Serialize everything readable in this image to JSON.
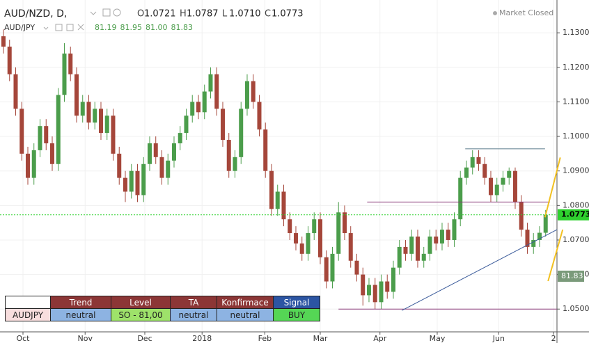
{
  "chart_data": {
    "type": "candlestick",
    "header": {
      "symbol": "AUD/NZD, D,",
      "prefixes": [
        "O",
        "H",
        "L",
        "C"
      ],
      "values": [
        "1.0721",
        "1.0787",
        "1.0710",
        "1.0773"
      ]
    },
    "compare": {
      "symbol": "AUD/JPY",
      "values": [
        "81.19",
        "81.95",
        "81.00",
        "81.83"
      ]
    },
    "market_status": "Market Closed",
    "up_color": "#4b9d4b",
    "down_color": "#a5463a",
    "open": [
      1.129,
      1.126,
      1.118,
      1.108,
      1.095,
      1.088,
      1.096,
      1.103,
      1.098,
      1.092,
      1.112,
      1.124,
      1.118,
      1.106,
      1.11,
      1.104,
      1.108,
      1.101,
      1.106,
      1.095,
      1.088,
      1.084,
      1.09,
      1.083,
      1.092,
      1.098,
      1.094,
      1.088,
      1.093,
      1.098,
      1.101,
      1.106,
      1.11,
      1.107,
      1.113,
      1.118,
      1.108,
      1.099,
      1.09,
      1.094,
      1.108,
      1.116,
      1.11,
      1.102,
      1.09,
      1.079,
      1.084,
      1.076,
      1.072,
      1.069,
      1.066,
      1.072,
      1.076,
      1.065,
      1.058,
      1.066,
      1.078,
      1.072,
      1.064,
      1.06,
      1.054,
      1.057,
      1.052,
      1.058,
      1.055,
      1.062,
      1.068,
      1.066,
      1.071,
      1.064,
      1.066,
      1.071,
      1.069,
      1.073,
      1.07,
      1.076,
      1.088,
      1.091,
      1.094,
      1.092,
      1.088,
      1.083,
      1.086,
      1.088,
      1.09,
      1.081,
      1.073,
      1.068,
      1.07,
      1.0721
    ],
    "high": [
      1.131,
      1.128,
      1.12,
      1.11,
      1.097,
      1.098,
      1.105,
      1.105,
      1.1,
      1.114,
      1.127,
      1.126,
      1.12,
      1.112,
      1.112,
      1.11,
      1.11,
      1.108,
      1.108,
      1.097,
      1.09,
      1.092,
      1.092,
      1.094,
      1.1,
      1.1,
      1.096,
      1.095,
      1.1,
      1.103,
      1.108,
      1.112,
      1.112,
      1.115,
      1.12,
      1.12,
      1.11,
      1.101,
      1.096,
      1.11,
      1.118,
      1.118,
      1.112,
      1.104,
      1.092,
      1.086,
      1.086,
      1.078,
      1.074,
      1.071,
      1.074,
      1.078,
      1.078,
      1.067,
      1.068,
      1.081,
      1.08,
      1.074,
      1.066,
      1.062,
      1.059,
      1.059,
      1.06,
      1.06,
      1.064,
      1.07,
      1.07,
      1.073,
      1.073,
      1.068,
      1.073,
      1.073,
      1.075,
      1.075,
      1.078,
      1.09,
      1.093,
      1.096,
      1.096,
      1.094,
      1.09,
      1.088,
      1.09,
      1.091,
      1.091,
      1.083,
      1.075,
      1.072,
      1.074,
      1.0787
    ],
    "low": [
      1.124,
      1.116,
      1.106,
      1.093,
      1.086,
      1.086,
      1.094,
      1.096,
      1.09,
      1.09,
      1.11,
      1.116,
      1.104,
      1.104,
      1.102,
      1.102,
      1.099,
      1.099,
      1.093,
      1.086,
      1.081,
      1.082,
      1.081,
      1.081,
      1.09,
      1.092,
      1.086,
      1.086,
      1.091,
      1.096,
      1.099,
      1.104,
      1.105,
      1.105,
      1.111,
      1.106,
      1.097,
      1.088,
      1.088,
      1.092,
      1.106,
      1.108,
      1.1,
      1.088,
      1.077,
      1.077,
      1.074,
      1.07,
      1.067,
      1.064,
      1.064,
      1.07,
      1.063,
      1.056,
      1.056,
      1.064,
      1.07,
      1.062,
      1.058,
      1.051,
      1.052,
      1.05,
      1.05,
      1.053,
      1.053,
      1.06,
      1.064,
      1.064,
      1.062,
      1.062,
      1.064,
      1.067,
      1.067,
      1.068,
      1.068,
      1.074,
      1.086,
      1.089,
      1.09,
      1.086,
      1.081,
      1.081,
      1.084,
      1.086,
      1.079,
      1.071,
      1.066,
      1.066,
      1.068,
      1.071
    ],
    "close": [
      1.126,
      1.118,
      1.108,
      1.095,
      1.088,
      1.096,
      1.103,
      1.098,
      1.092,
      1.112,
      1.124,
      1.118,
      1.106,
      1.11,
      1.104,
      1.108,
      1.101,
      1.106,
      1.095,
      1.088,
      1.084,
      1.09,
      1.083,
      1.092,
      1.098,
      1.094,
      1.088,
      1.093,
      1.098,
      1.101,
      1.106,
      1.11,
      1.107,
      1.113,
      1.118,
      1.108,
      1.099,
      1.09,
      1.094,
      1.108,
      1.116,
      1.11,
      1.102,
      1.09,
      1.079,
      1.084,
      1.076,
      1.072,
      1.069,
      1.066,
      1.072,
      1.076,
      1.065,
      1.058,
      1.066,
      1.078,
      1.072,
      1.064,
      1.06,
      1.054,
      1.057,
      1.052,
      1.058,
      1.055,
      1.062,
      1.068,
      1.066,
      1.071,
      1.064,
      1.066,
      1.071,
      1.069,
      1.073,
      1.07,
      1.076,
      1.088,
      1.091,
      1.094,
      1.092,
      1.088,
      1.083,
      1.086,
      1.088,
      1.09,
      1.081,
      1.073,
      1.068,
      1.07,
      1.0721,
      1.0773
    ],
    "xlim": [
      -0.57,
      90.86
    ],
    "xticks": [
      {
        "value": 3.2,
        "label": "Oct"
      },
      {
        "value": 13.4,
        "label": "Nov"
      },
      {
        "value": 23.2,
        "label": "Dec"
      },
      {
        "value": 32.6,
        "label": "2018"
      },
      {
        "value": 42.9,
        "label": "Feb"
      },
      {
        "value": 52,
        "label": "Mar"
      },
      {
        "value": 61.8,
        "label": "Apr"
      },
      {
        "value": 71.2,
        "label": "May"
      },
      {
        "value": 81.3,
        "label": "Jun"
      },
      {
        "value": 90.3,
        "label": "2"
      }
    ],
    "ylim": [
      1.0434,
      1.1395
    ],
    "yticks": [
      {
        "value": 1.05,
        "label": "1.0500"
      },
      {
        "value": 1.06,
        "label": "1.0600"
      },
      {
        "value": 1.07,
        "label": "1.0700"
      },
      {
        "value": 1.08,
        "label": "1.0800"
      },
      {
        "value": 1.09,
        "label": "1.0900"
      },
      {
        "value": 1.1,
        "label": "1.1000"
      },
      {
        "value": 1.11,
        "label": "1.1100"
      },
      {
        "value": 1.12,
        "label": "1.1200"
      },
      {
        "value": 1.13,
        "label": "1.1300"
      }
    ],
    "grid": true,
    "last_price_color": "#2ed12e",
    "lines": [
      {
        "x": [
          75.8,
          88.9
        ],
        "y": [
          1.0964,
          1.0964
        ],
        "color": "#5a7a8a"
      },
      {
        "x": [
          59.7,
          89.7
        ],
        "y": [
          1.081,
          1.081
        ],
        "color": "#8a3a7a"
      },
      {
        "x": [
          55,
          90.86
        ],
        "y": [
          1.05,
          1.05
        ],
        "color": "#8a3a7a"
      },
      {
        "x": [
          65.4,
          90.86
        ],
        "y": [
          1.0496,
          1.073
        ],
        "color": "#3a5a9a"
      },
      {
        "x": [
          88.9,
          91.4
        ],
        "y": [
          1.0766,
          1.0939
        ],
        "color": "#f2c020"
      },
      {
        "x": [
          89.4,
          91.8
        ],
        "y": [
          1.0581,
          1.073
        ],
        "color": "#f2c020"
      }
    ]
  },
  "table": {
    "headers": [
      "Trend",
      "Level",
      "TA",
      "Konfirmace",
      "Signal"
    ],
    "rows": [
      [
        "AUDJPY",
        "neutral",
        "SO - 81,00",
        "neutral",
        "neutral",
        "BUY"
      ]
    ]
  }
}
